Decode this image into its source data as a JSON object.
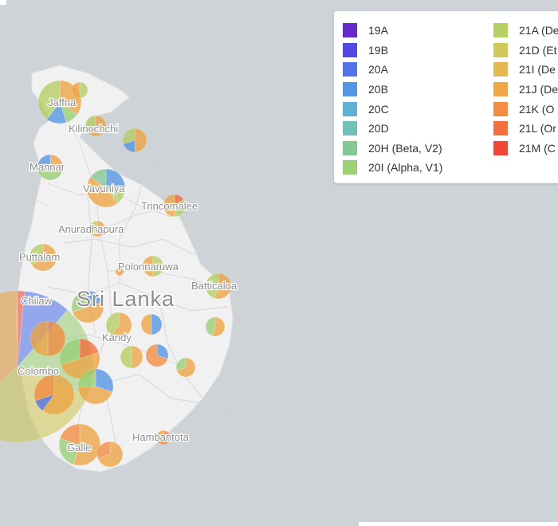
{
  "map": {
    "country_label": "Sri Lanka",
    "colors": {
      "water": "#cdd3d6",
      "land": "#f1f1f1",
      "label": "#8c8c8c"
    },
    "city_labels": [
      "Jaffna",
      "Kilinochchi",
      "Mannar",
      "Vavuniya",
      "Trincomalee",
      "Anuradhapura",
      "Puttalam",
      "Polonnaruwa",
      "Batticaloa",
      "Chilaw",
      "Kandy",
      "Colombo",
      "Galle",
      "Hambantota"
    ]
  },
  "legend": {
    "items": [
      {
        "label": "19A",
        "color": "#5e1ec7"
      },
      {
        "label": "19B",
        "color": "#4a3ee0"
      },
      {
        "label": "20A",
        "color": "#4a6ce8"
      },
      {
        "label": "20B",
        "color": "#4c91e3"
      },
      {
        "label": "20C",
        "color": "#5aabd2"
      },
      {
        "label": "20D",
        "color": "#6cbcb5"
      },
      {
        "label": "20H (Beta, V2)",
        "color": "#7dc68f"
      },
      {
        "label": "20I (Alpha, V1)",
        "color": "#96ce70"
      },
      {
        "label": "21A (De",
        "color": "#b3cd5e"
      },
      {
        "label": "21D (Et",
        "color": "#cdc550"
      },
      {
        "label": "21I (De",
        "color": "#e0b546"
      },
      {
        "label": "21J (De",
        "color": "#eea23e"
      },
      {
        "label": "21K (O",
        "color": "#f3873a"
      },
      {
        "label": "21L (Or",
        "color": "#f46835"
      },
      {
        "label": "21M (C",
        "color": "#ef3b2c"
      }
    ]
  }
}
